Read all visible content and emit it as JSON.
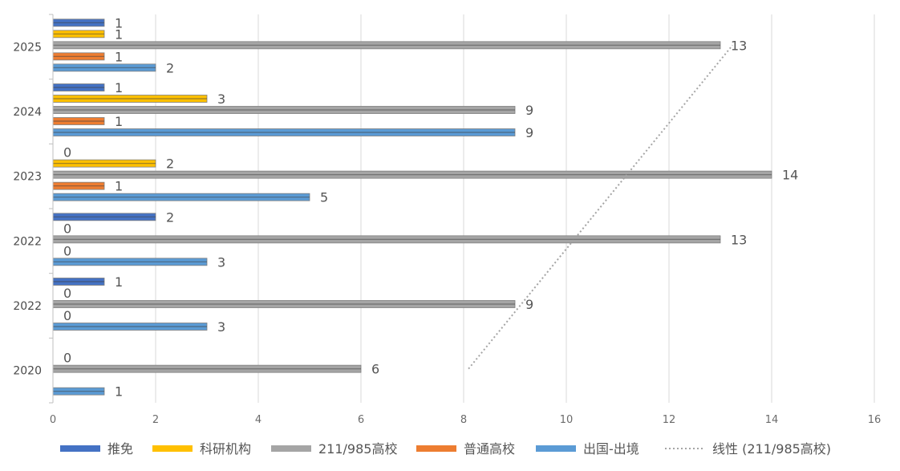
{
  "chart_data": {
    "type": "bar",
    "orientation": "horizontal",
    "categories": [
      "2020",
      "2022",
      "2022",
      "2023",
      "2024",
      "2025"
    ],
    "series": [
      {
        "name": "出国-出境",
        "color": "#5b9bd5",
        "values": [
          1,
          3,
          3,
          5,
          9,
          2
        ]
      },
      {
        "name": "普通高校",
        "color": "#ed7d31",
        "values": [
          null,
          0,
          0,
          1,
          1,
          1
        ]
      },
      {
        "name": "211/985高校",
        "color": "#a5a5a5",
        "values": [
          6,
          9,
          13,
          14,
          9,
          13
        ]
      },
      {
        "name": "科研机构",
        "color": "#ffc000",
        "values": [
          0,
          0,
          0,
          2,
          3,
          1
        ]
      },
      {
        "name": "推免",
        "color": "#4472c4",
        "values": [
          null,
          1,
          2,
          0,
          1,
          1
        ]
      }
    ],
    "trendline": {
      "name": "线性 (211/985高校)",
      "color": "#a5a5a5",
      "style": "dotted",
      "series": "211/985高校"
    },
    "x_ticks": [
      "0",
      "2",
      "4",
      "6",
      "8",
      "10",
      "12",
      "14",
      "16"
    ],
    "xlim": [
      0,
      16
    ],
    "grid": true,
    "legend_position": "bottom",
    "legend": [
      "推免",
      "科研机构",
      "211/985高校",
      "普通高校",
      "出国-出境",
      "线性 (211/985高校)"
    ]
  }
}
